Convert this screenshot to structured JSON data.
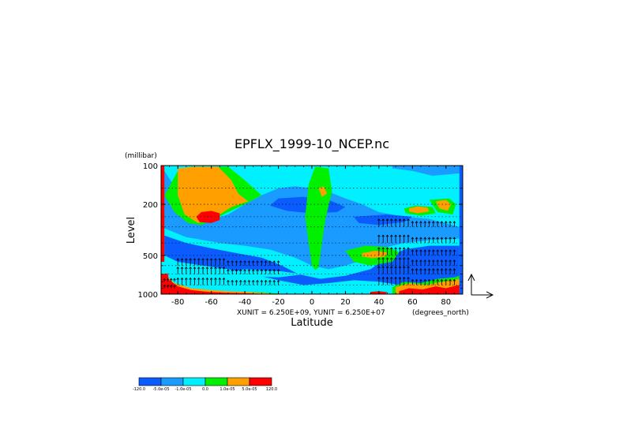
{
  "chart_data": {
    "type": "heatmap",
    "title": "EPFLX_1999-10_NCEP.nc",
    "xlabel": "Latitude",
    "ylabel": "Level",
    "x_units": "(degrees_north)",
    "y_units": "(millibar)",
    "xlim": [
      -90,
      90
    ],
    "ylim": [
      1000,
      100
    ],
    "y_scale": "log",
    "x_ticks": [
      "-80",
      "-60",
      "-40",
      "-20",
      "0",
      "20",
      "40",
      "60",
      "80"
    ],
    "x_tick_values": [
      -80,
      -60,
      -40,
      -20,
      0,
      20,
      40,
      60,
      80
    ],
    "y_ticks": [
      "100",
      "200",
      "500",
      "1000"
    ],
    "y_tick_values": [
      100,
      200,
      500,
      1000
    ],
    "vector_scale_text": "XUNIT = 6.250E+09, YUNIT = 6.250E+07",
    "colorbar": {
      "labels": [
        "-120.0",
        "-5.0e-05",
        "-1.0e-05",
        "0.0",
        "1.0e-05",
        "5.0e-05",
        "120.0"
      ],
      "colors": [
        "#0a5cff",
        "#1a9bff",
        "#00f0ff",
        "#00f000",
        "#ffa000",
        "#ff0000"
      ]
    },
    "base_color": "#00f0ff",
    "contour_regions": [
      {
        "color": "#1a9bff",
        "points": [
          [
            -90,
            300
          ],
          [
            -75,
            360
          ],
          [
            -55,
            400
          ],
          [
            -40,
            420
          ],
          [
            -25,
            450
          ],
          [
            -10,
            520
          ],
          [
            0,
            600
          ],
          [
            10,
            640
          ],
          [
            20,
            600
          ],
          [
            35,
            520
          ],
          [
            45,
            430
          ],
          [
            55,
            400
          ],
          [
            70,
            380
          ],
          [
            88,
            370
          ],
          [
            88,
            300
          ],
          [
            70,
            260
          ],
          [
            55,
            250
          ],
          [
            40,
            230
          ],
          [
            30,
            200
          ],
          [
            20,
            180
          ],
          [
            10,
            160
          ],
          [
            0,
            150
          ],
          [
            -10,
            145
          ],
          [
            -20,
            150
          ],
          [
            -30,
            170
          ],
          [
            -40,
            200
          ],
          [
            -50,
            240
          ],
          [
            -62,
            270
          ],
          [
            -72,
            250
          ],
          [
            -80,
            160
          ],
          [
            -88,
            110
          ],
          [
            -90,
            110
          ]
        ]
      },
      {
        "color": "#1a9bff",
        "points": [
          [
            48,
            105
          ],
          [
            60,
            110
          ],
          [
            72,
            120
          ],
          [
            88,
            115
          ],
          [
            88,
            100
          ],
          [
            48,
            100
          ]
        ]
      },
      {
        "color": "#0a5cff",
        "points": [
          [
            -88,
            350
          ],
          [
            -75,
            400
          ],
          [
            -60,
            440
          ],
          [
            -45,
            480
          ],
          [
            -30,
            520
          ],
          [
            -18,
            600
          ],
          [
            -8,
            700
          ],
          [
            5,
            760
          ],
          [
            20,
            720
          ],
          [
            35,
            640
          ],
          [
            45,
            520
          ],
          [
            55,
            450
          ],
          [
            70,
            420
          ],
          [
            88,
            420
          ],
          [
            88,
            900
          ],
          [
            70,
            880
          ],
          [
            55,
            860
          ],
          [
            40,
            800
          ],
          [
            25,
            780
          ],
          [
            10,
            820
          ],
          [
            -5,
            850
          ],
          [
            -20,
            780
          ],
          [
            -35,
            700
          ],
          [
            -50,
            640
          ],
          [
            -65,
            600
          ],
          [
            -80,
            560
          ],
          [
            -88,
            500
          ]
        ]
      },
      {
        "color": "#0a5cff",
        "points": [
          [
            -20,
            180
          ],
          [
            -5,
            175
          ],
          [
            10,
            185
          ],
          [
            20,
            210
          ],
          [
            15,
            230
          ],
          [
            0,
            235
          ],
          [
            -15,
            225
          ],
          [
            -25,
            205
          ]
        ]
      },
      {
        "color": "#0a5cff",
        "points": [
          [
            25,
            250
          ],
          [
            45,
            240
          ],
          [
            60,
            250
          ],
          [
            55,
            275
          ],
          [
            40,
            290
          ],
          [
            28,
            280
          ]
        ]
      },
      {
        "color": "#00f0ff",
        "points": [
          [
            -40,
            640
          ],
          [
            -20,
            660
          ],
          [
            -5,
            700
          ],
          [
            -20,
            740
          ],
          [
            -40,
            720
          ],
          [
            -50,
            680
          ]
        ]
      },
      {
        "color": "#00f000",
        "points": [
          [
            -88,
            170
          ],
          [
            -80,
            110
          ],
          [
            -72,
            102
          ],
          [
            -50,
            102
          ],
          [
            -40,
            130
          ],
          [
            -30,
            170
          ],
          [
            -40,
            200
          ],
          [
            -50,
            230
          ],
          [
            -58,
            260
          ],
          [
            -66,
            290
          ],
          [
            -74,
            280
          ],
          [
            -82,
            230
          ]
        ]
      },
      {
        "color": "#00f000",
        "points": [
          [
            2,
            102
          ],
          [
            10,
            105
          ],
          [
            12,
            160
          ],
          [
            8,
            260
          ],
          [
            6,
            400
          ],
          [
            4,
            620
          ],
          [
            2,
            650
          ],
          [
            0,
            600
          ],
          [
            -2,
            400
          ],
          [
            -4,
            250
          ],
          [
            -2,
            140
          ]
        ]
      },
      {
        "color": "#00f000",
        "points": [
          [
            20,
            460
          ],
          [
            32,
            420
          ],
          [
            45,
            430
          ],
          [
            52,
            470
          ],
          [
            48,
            560
          ],
          [
            35,
            600
          ],
          [
            25,
            560
          ]
        ]
      },
      {
        "color": "#00f000",
        "points": [
          [
            48,
            880
          ],
          [
            55,
            800
          ],
          [
            65,
            820
          ],
          [
            75,
            760
          ],
          [
            85,
            740
          ],
          [
            88,
            720
          ],
          [
            88,
            1000
          ],
          [
            48,
            1000
          ]
        ]
      },
      {
        "color": "#00f000",
        "points": [
          [
            55,
            215
          ],
          [
            62,
            205
          ],
          [
            72,
            210
          ],
          [
            74,
            235
          ],
          [
            65,
            245
          ],
          [
            56,
            235
          ]
        ]
      },
      {
        "color": "#00f000",
        "points": [
          [
            70,
            185
          ],
          [
            82,
            180
          ],
          [
            86,
            200
          ],
          [
            84,
            240
          ],
          [
            75,
            230
          ]
        ]
      },
      {
        "color": "#00f000",
        "points": [
          [
            -88,
            800
          ],
          [
            -80,
            860
          ],
          [
            -70,
            920
          ],
          [
            -60,
            950
          ],
          [
            -45,
            960
          ],
          [
            -30,
            970
          ],
          [
            -20,
            990
          ],
          [
            -20,
            1000
          ],
          [
            -88,
            1000
          ]
        ]
      },
      {
        "color": "#ffa000",
        "points": [
          [
            -80,
            105
          ],
          [
            -70,
            102
          ],
          [
            -56,
            102
          ],
          [
            -48,
            130
          ],
          [
            -44,
            165
          ],
          [
            -38,
            190
          ],
          [
            -48,
            210
          ],
          [
            -55,
            240
          ],
          [
            -60,
            265
          ],
          [
            -68,
            280
          ],
          [
            -76,
            240
          ],
          [
            -80,
            170
          ]
        ]
      },
      {
        "color": "#ffa000",
        "points": [
          [
            4,
            150
          ],
          [
            7,
            145
          ],
          [
            9,
            165
          ],
          [
            6,
            175
          ]
        ]
      },
      {
        "color": "#ffa000",
        "points": [
          [
            30,
            480
          ],
          [
            38,
            460
          ],
          [
            45,
            475
          ],
          [
            44,
            510
          ],
          [
            36,
            525
          ],
          [
            30,
            510
          ]
        ]
      },
      {
        "color": "#ffa000",
        "points": [
          [
            50,
            880
          ],
          [
            58,
            820
          ],
          [
            68,
            850
          ],
          [
            78,
            800
          ],
          [
            86,
            770
          ],
          [
            88,
            760
          ],
          [
            88,
            1000
          ],
          [
            50,
            1000
          ]
        ]
      },
      {
        "color": "#ffa000",
        "points": [
          [
            58,
            215
          ],
          [
            63,
            208
          ],
          [
            69,
            212
          ],
          [
            70,
            228
          ],
          [
            63,
            235
          ],
          [
            58,
            228
          ]
        ]
      },
      {
        "color": "#ffa000",
        "points": [
          [
            74,
            190
          ],
          [
            80,
            185
          ],
          [
            83,
            200
          ],
          [
            81,
            225
          ],
          [
            76,
            215
          ]
        ]
      },
      {
        "color": "#ffa000",
        "points": [
          [
            -88,
            700
          ],
          [
            -82,
            820
          ],
          [
            -72,
            900
          ],
          [
            -60,
            930
          ],
          [
            -50,
            950
          ],
          [
            -40,
            960
          ],
          [
            -28,
            980
          ],
          [
            -22,
            1000
          ],
          [
            -88,
            1000
          ]
        ]
      },
      {
        "color": "#ff0000",
        "points": [
          [
            -66,
            230
          ],
          [
            -60,
            225
          ],
          [
            -55,
            235
          ],
          [
            -55,
            265
          ],
          [
            -60,
            280
          ],
          [
            -67,
            275
          ],
          [
            -69,
            250
          ]
        ]
      },
      {
        "color": "#ff0000",
        "points": [
          [
            -90,
            100
          ],
          [
            -88,
            100
          ],
          [
            -88,
            560
          ],
          [
            -90,
            560
          ]
        ]
      },
      {
        "color": "#ff0000",
        "points": [
          [
            -90,
            700
          ],
          [
            -86,
            760
          ],
          [
            -80,
            870
          ],
          [
            -72,
            930
          ],
          [
            -62,
            960
          ],
          [
            -50,
            975
          ],
          [
            -38,
            985
          ],
          [
            -25,
            1000
          ],
          [
            -90,
            1000
          ]
        ]
      },
      {
        "color": "#ff0000",
        "points": [
          [
            52,
            950
          ],
          [
            58,
            900
          ],
          [
            66,
            920
          ],
          [
            74,
            870
          ],
          [
            80,
            900
          ],
          [
            86,
            860
          ],
          [
            88,
            850
          ],
          [
            88,
            1000
          ],
          [
            52,
            1000
          ]
        ]
      },
      {
        "color": "#ff0000",
        "points": [
          [
            35,
            960
          ],
          [
            40,
            950
          ],
          [
            45,
            965
          ],
          [
            44,
            1000
          ],
          [
            35,
            1000
          ]
        ]
      },
      {
        "color": "#ff0000",
        "points": [
          [
            -90,
            700
          ],
          [
            -86,
            690
          ],
          [
            -84,
            1000
          ],
          [
            -90,
            1000
          ]
        ]
      }
    ],
    "edge_strip_right": {
      "color": "#0a5cff",
      "x_from": 88,
      "x_to": 90
    }
  }
}
